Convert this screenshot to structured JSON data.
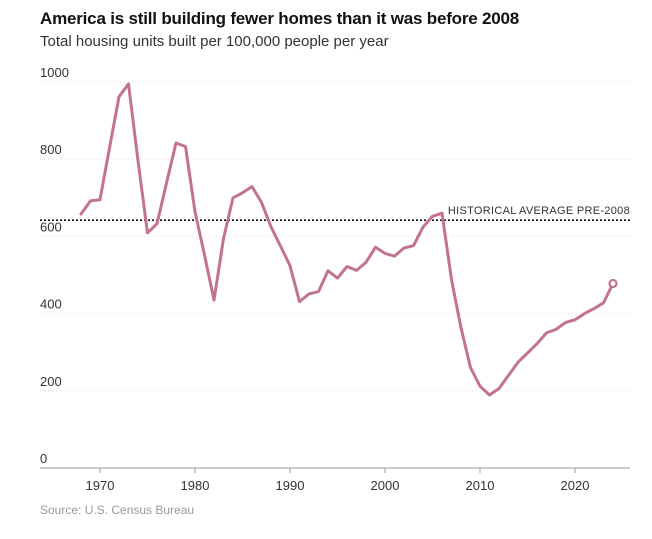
{
  "header": {
    "title": "America is still building fewer homes than it was before 2008",
    "subtitle": "Total housing units built per 100,000 people per year"
  },
  "footer": {
    "source": "Source: U.S. Census Bureau"
  },
  "chart_data": {
    "type": "line",
    "title": "America is still building fewer homes than it was before 2008",
    "subtitle": "Total housing units built per 100,000 people per year",
    "xlabel": "",
    "ylabel": "",
    "xlim": [
      1966,
      2026
    ],
    "ylim": [
      0,
      1000
    ],
    "x_ticks": [
      1970,
      1980,
      1990,
      2000,
      2010,
      2020
    ],
    "y_ticks": [
      0,
      200,
      400,
      600,
      800,
      1000
    ],
    "grid": true,
    "series_color": "#c2738f",
    "series": [
      {
        "x": [
          1968,
          1969,
          1970,
          1971,
          1972,
          1973,
          1974,
          1975,
          1976,
          1977,
          1978,
          1979,
          1980,
          1981,
          1982,
          1983,
          1984,
          1985,
          1986,
          1987,
          1988,
          1989,
          1990,
          1991,
          1992,
          1993,
          1994,
          1995,
          1996,
          1997,
          1998,
          1999,
          2000,
          2001,
          2002,
          2003,
          2004,
          2005,
          2006,
          2007,
          2008,
          2009,
          2010,
          2011,
          2012,
          2013,
          2014,
          2015,
          2016,
          2017,
          2018,
          2019,
          2020,
          2021,
          2022,
          2023,
          2024
        ],
        "values": [
          658,
          692,
          695,
          829,
          962,
          995,
          796,
          609,
          633,
          738,
          842,
          833,
          664,
          552,
          435,
          594,
          700,
          713,
          729,
          688,
          625,
          575,
          524,
          431,
          451,
          457,
          511,
          492,
          522,
          512,
          533,
          572,
          556,
          549,
          570,
          576,
          624,
          652,
          660,
          488,
          363,
          260,
          212,
          189,
          206,
          240,
          274,
          298,
          322,
          350,
          359,
          377,
          384,
          400,
          413,
          428,
          478
        ]
      }
    ],
    "reference_line": {
      "value": 642,
      "label": "HISTORICAL AVERAGE PRE-2008"
    },
    "endpoint_marker": {
      "x": 2024,
      "value": 478
    }
  }
}
